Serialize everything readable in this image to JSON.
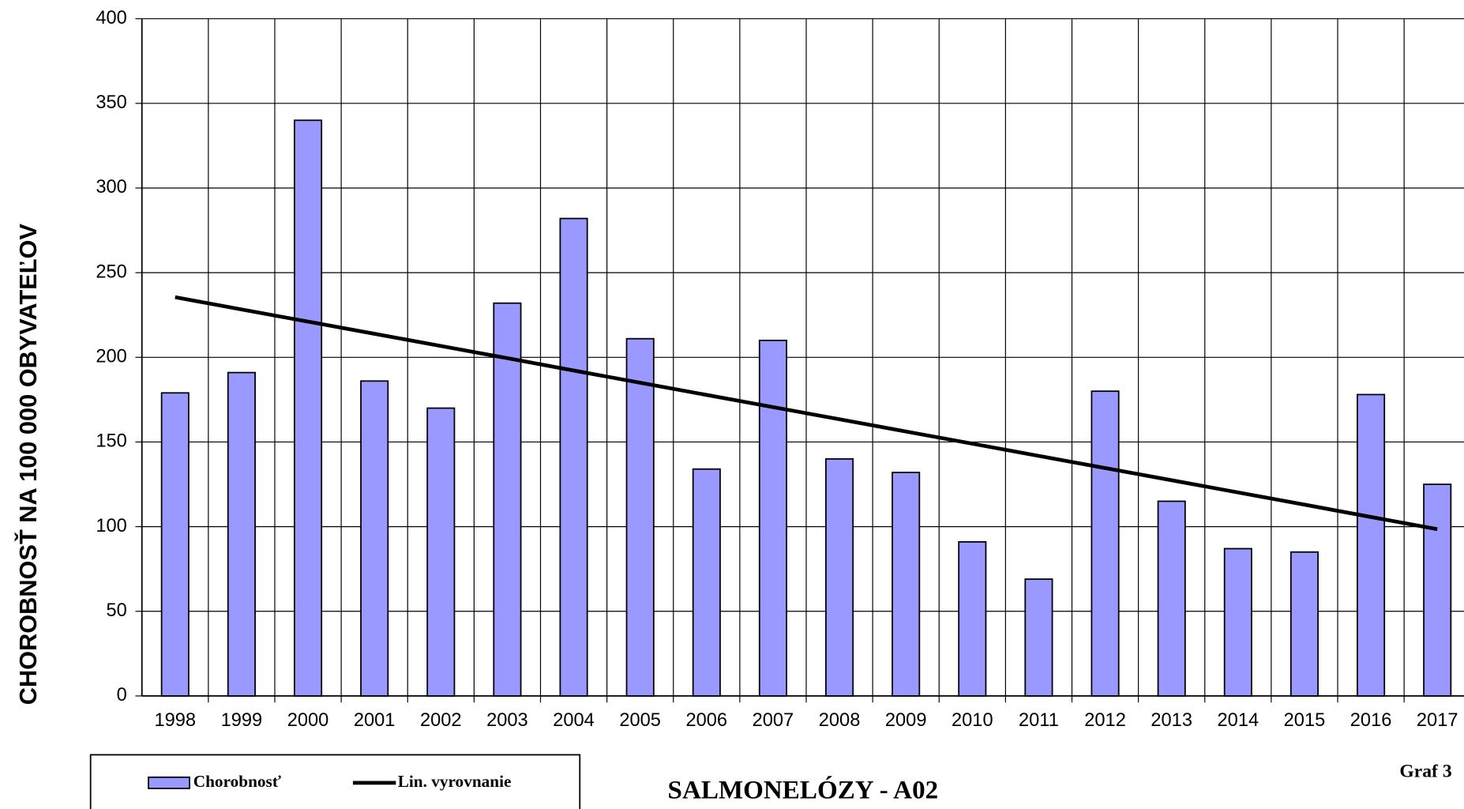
{
  "chart_data": {
    "type": "bar",
    "title": "SALMONELÓZY - A02",
    "note": "Graf 3",
    "y_label": "CHOROBNOSŤ NA 100 000 OBYVATEĽOV",
    "categories": [
      "1998",
      "1999",
      "2000",
      "2001",
      "2002",
      "2003",
      "2004",
      "2005",
      "2006",
      "2007",
      "2008",
      "2009",
      "2010",
      "2011",
      "2012",
      "2013",
      "2014",
      "2015",
      "2016",
      "2017"
    ],
    "series": [
      {
        "name": "Chorobnosť",
        "color": "#9999ff",
        "values": [
          179,
          191,
          340,
          186,
          170,
          232,
          282,
          211,
          134,
          210,
          140,
          132,
          91,
          69,
          180,
          115,
          87,
          85,
          178,
          125
        ]
      },
      {
        "name": "Lin. vyrovnanie",
        "type": "line",
        "color": "#000000",
        "values": [
          235.5,
          228.3,
          221.1,
          213.9,
          206.7,
          199.5,
          192.2,
          185.0,
          177.8,
          170.6,
          163.4,
          156.2,
          149.0,
          141.8,
          134.6,
          127.4,
          120.2,
          113.0,
          105.7,
          98.5
        ]
      }
    ],
    "ylim": [
      0,
      400
    ],
    "yticks": [
      0,
      50,
      100,
      150,
      200,
      250,
      300,
      350,
      400
    ],
    "grid": true,
    "legend": "bottom-left"
  }
}
